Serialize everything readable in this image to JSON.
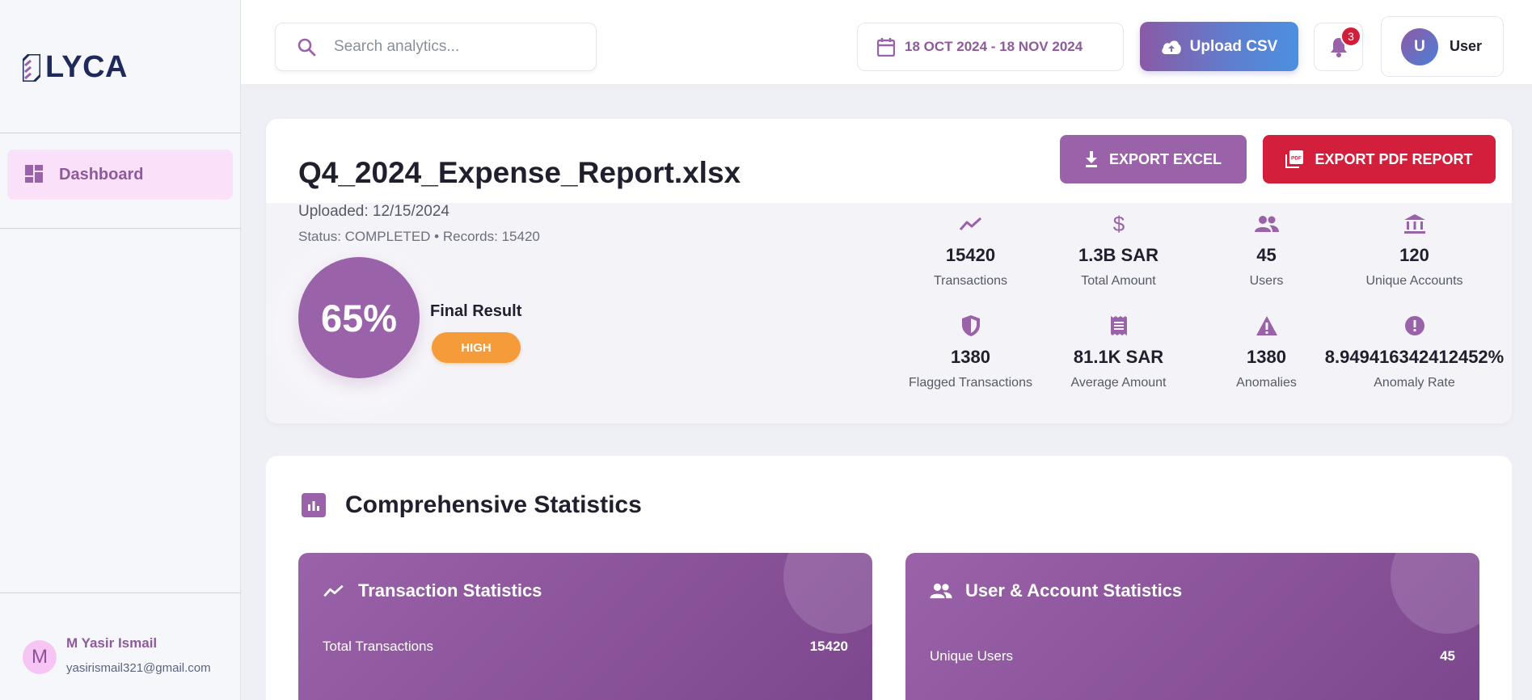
{
  "brand": {
    "name": "LYCA"
  },
  "sidebar": {
    "items": [
      {
        "label": "Dashboard",
        "icon": "dashboard-icon",
        "active": true
      }
    ],
    "user": {
      "initial": "M",
      "name": "M Yasir Ismail",
      "email": "yasirismail321@gmail.com"
    }
  },
  "topbar": {
    "search_placeholder": "Search analytics...",
    "date_range": "18 OCT 2024 - 18 NOV 2024",
    "upload_label": "Upload CSV",
    "notification_count": "3",
    "user_initial": "U",
    "user_name": "User"
  },
  "report": {
    "file_name": "Q4_2024_Expense_Report.xlsx",
    "uploaded": "Uploaded: 12/15/2024",
    "status_line": "Status: COMPLETED • Records: 15420",
    "score": "65%",
    "final_label": "Final Result",
    "risk_level": "HIGH",
    "export_excel_label": "EXPORT EXCEL",
    "export_pdf_label": "EXPORT PDF REPORT",
    "metrics": [
      {
        "icon": "trend-icon",
        "value": "15420",
        "label": "Transactions"
      },
      {
        "icon": "dollar-icon",
        "value": "1.3B SAR",
        "label": "Total Amount"
      },
      {
        "icon": "users-icon",
        "value": "45",
        "label": "Users"
      },
      {
        "icon": "bank-icon",
        "value": "120",
        "label": "Unique Accounts"
      },
      {
        "icon": "shield-icon",
        "value": "1380",
        "label": "Flagged Transactions"
      },
      {
        "icon": "receipt-icon",
        "value": "81.1K SAR",
        "label": "Average Amount"
      },
      {
        "icon": "warning-icon",
        "value": "1380",
        "label": "Anomalies"
      },
      {
        "icon": "alert-circle-icon",
        "value": "8.949416342412452%",
        "label": "Anomaly Rate"
      }
    ]
  },
  "stats": {
    "title": "Comprehensive Statistics",
    "panels": [
      {
        "title": "Transaction Statistics",
        "icon": "trend-icon",
        "rows": [
          {
            "label": "Total Transactions",
            "value": "15420"
          }
        ]
      },
      {
        "title": "User & Account Statistics",
        "icon": "users-icon",
        "rows": [
          {
            "label": "Unique Users",
            "value": "45"
          }
        ]
      }
    ]
  },
  "colors": {
    "accent": "#9a62a8",
    "danger": "#d31f3c",
    "warning": "#f59b3a",
    "navy": "#1d2a5b"
  }
}
